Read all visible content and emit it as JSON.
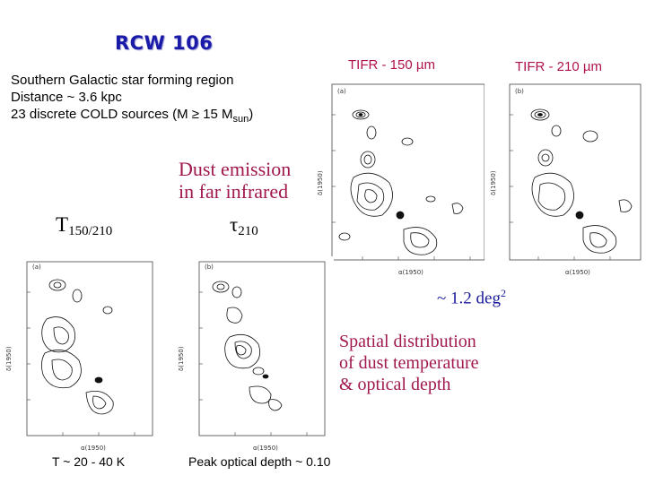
{
  "title": "RCW 106",
  "intro": {
    "line1": "Southern Galactic star forming region",
    "line2": "Distance ~ 3.6 kpc",
    "line3_pre": "23 discrete COLD sources (M ≥ 15 M",
    "line3_sub": "sun",
    "line3_post": ")"
  },
  "labels": {
    "tifr150": "TIFR - 150 µm",
    "tifr210": "TIFR - 210 µm",
    "dust_line1": "Dust emission",
    "dust_line2": "in far infrared",
    "T_main": "T",
    "T_sub": "150/210",
    "tau_main": "τ",
    "tau_sub": "210",
    "area_pre": "~ 1.2 deg",
    "area_sup": "2",
    "spatial_line1": "Spatial distribution",
    "spatial_line2": "of dust temperature",
    "spatial_line3": "& optical depth",
    "T_range": "T ~ 20 - 40 K",
    "peak_tau": "Peak optical depth ~ 0.10"
  },
  "panels": {
    "a_label": "(a)",
    "b_label": "(b)",
    "dec_axis": "δ(1950)",
    "ra_axis": "α(1950)"
  }
}
